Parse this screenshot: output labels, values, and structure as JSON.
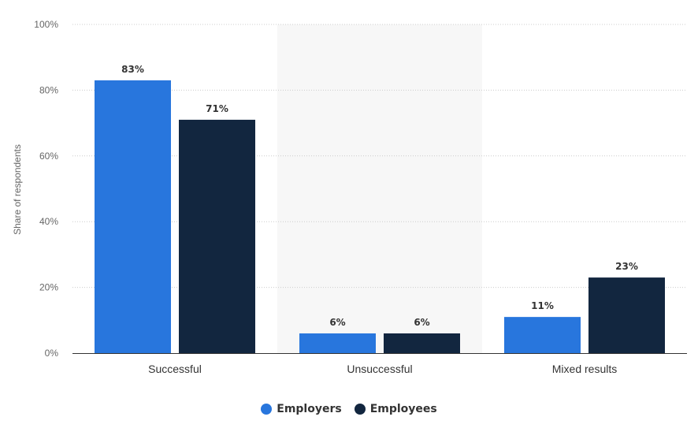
{
  "chart_data": {
    "type": "bar",
    "categories": [
      "Successful",
      "Unsuccessful",
      "Mixed results"
    ],
    "series": [
      {
        "name": "Employers",
        "values": [
          83,
          6,
          11
        ],
        "color": "#2876dd"
      },
      {
        "name": "Employees",
        "values": [
          71,
          6,
          23
        ],
        "color": "#12263f"
      }
    ],
    "ylabel": "Share of respondents",
    "ylim": [
      0,
      100
    ],
    "yticks": [
      "0%",
      "20%",
      "40%",
      "60%",
      "80%",
      "100%"
    ],
    "value_suffix": "%",
    "grid": true,
    "highlighted_category": "Unsuccessful",
    "legend_position": "bottom-center"
  }
}
